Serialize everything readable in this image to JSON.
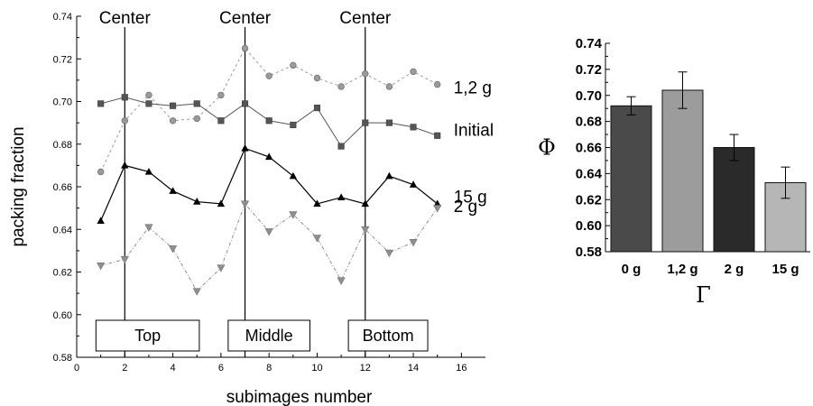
{
  "chart_data": [
    {
      "type": "line",
      "xlabel": "subimages number",
      "ylabel": "packing fraction",
      "xlim": [
        0,
        17
      ],
      "ylim": [
        0.58,
        0.74
      ],
      "xticks": [
        0,
        2,
        4,
        6,
        8,
        10,
        12,
        14,
        16
      ],
      "yticks": [
        0.58,
        0.6,
        0.62,
        0.64,
        0.66,
        0.68,
        0.7,
        0.72,
        0.74
      ],
      "x": [
        1,
        2,
        3,
        4,
        5,
        6,
        7,
        8,
        9,
        10,
        11,
        12,
        13,
        14,
        15
      ],
      "series": [
        {
          "name": "1,2 g",
          "color": "#9a9a9a",
          "marker": "circle",
          "values": [
            0.667,
            0.691,
            0.703,
            0.691,
            0.692,
            0.703,
            0.725,
            0.712,
            0.717,
            0.711,
            0.707,
            0.713,
            0.707,
            0.714,
            0.708
          ]
        },
        {
          "name": "Initial",
          "color": "#555555",
          "marker": "square",
          "values": [
            0.699,
            0.702,
            0.699,
            0.698,
            0.699,
            0.691,
            0.699,
            0.691,
            0.689,
            0.697,
            0.679,
            0.69,
            0.69,
            0.688,
            0.684
          ]
        },
        {
          "name": "2 g",
          "color": "#000000",
          "marker": "triangle-up",
          "values": [
            0.644,
            0.67,
            0.667,
            0.658,
            0.653,
            0.652,
            0.678,
            0.674,
            0.665,
            0.652,
            0.655,
            0.652,
            0.665,
            0.661,
            0.652
          ]
        },
        {
          "name": "15 g",
          "color": "#8f8f8f",
          "marker": "triangle-down",
          "values": [
            0.623,
            0.626,
            0.641,
            0.631,
            0.611,
            0.622,
            0.652,
            0.639,
            0.647,
            0.636,
            0.616,
            0.64,
            0.629,
            0.634,
            0.65
          ]
        }
      ],
      "vlines": [
        {
          "x": 2,
          "label": "Center"
        },
        {
          "x": 7,
          "label": "Center"
        },
        {
          "x": 12,
          "label": "Center"
        }
      ],
      "regions": [
        {
          "label": "Top",
          "x_from": 0.8,
          "x_to": 5.1
        },
        {
          "label": "Middle",
          "x_from": 6.3,
          "x_to": 9.7
        },
        {
          "label": "Bottom",
          "x_from": 11.3,
          "x_to": 14.6
        }
      ],
      "grid": false
    },
    {
      "type": "bar",
      "xlabel": "Γ",
      "ylabel": "Φ",
      "ylim": [
        0.58,
        0.74
      ],
      "yticks": [
        0.58,
        0.6,
        0.62,
        0.64,
        0.66,
        0.68,
        0.7,
        0.72,
        0.74
      ],
      "categories": [
        "0 g",
        "1,2 g",
        "2 g",
        "15 g"
      ],
      "values": [
        0.692,
        0.704,
        0.66,
        0.633
      ],
      "errors": [
        0.007,
        0.014,
        0.01,
        0.012
      ],
      "colors": [
        "#4a4a4a",
        "#9c9c9c",
        "#2a2a2a",
        "#b6b6b6"
      ],
      "grid": false
    }
  ]
}
